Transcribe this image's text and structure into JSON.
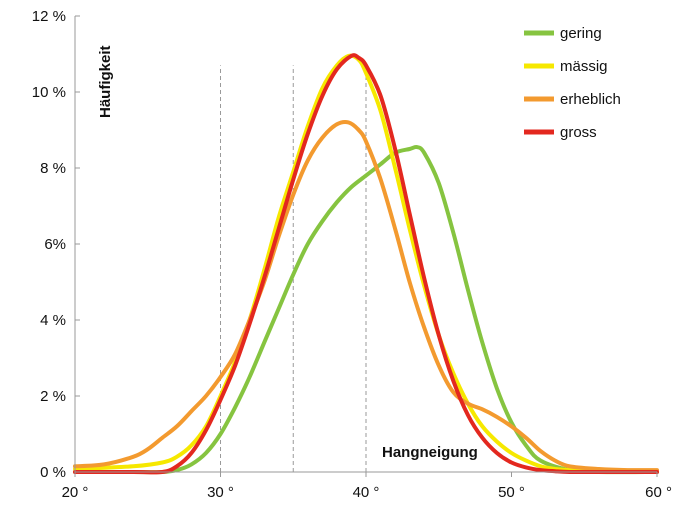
{
  "chart_data": {
    "type": "line",
    "xlabel": "Hangneigung",
    "ylabel": "Häufigkeit",
    "xlim": [
      20,
      60
    ],
    "ylim": [
      0,
      12
    ],
    "x_ticks": [
      {
        "value": 20,
        "label": "20 °"
      },
      {
        "value": 30,
        "label": "30 °"
      },
      {
        "value": 40,
        "label": "40 °"
      },
      {
        "value": 50,
        "label": "50 °"
      },
      {
        "value": 60,
        "label": "60 °"
      }
    ],
    "y_ticks": [
      {
        "value": 0,
        "label": "0 %"
      },
      {
        "value": 2,
        "label": "2 %"
      },
      {
        "value": 4,
        "label": "4 %"
      },
      {
        "value": 6,
        "label": "6%"
      },
      {
        "value": 8,
        "label": "8 %"
      },
      {
        "value": 10,
        "label": "10 %"
      },
      {
        "value": 12,
        "label": "12 %"
      }
    ],
    "reference_lines_x": [
      30,
      35,
      40
    ],
    "legend_position": "top-right",
    "grid": false,
    "series": [
      {
        "name": "gering",
        "color": "#86c440",
        "x": [
          20,
          24,
          26,
          27,
          28,
          29,
          30,
          31,
          32,
          33,
          34,
          35,
          36,
          37,
          38,
          39,
          40,
          41,
          42,
          43,
          43.5,
          44,
          45,
          46,
          47,
          48,
          49,
          50,
          51,
          52,
          54,
          56,
          60
        ],
        "y": [
          0,
          0,
          0,
          0.05,
          0.2,
          0.5,
          1.0,
          1.7,
          2.5,
          3.4,
          4.3,
          5.2,
          6.0,
          6.6,
          7.1,
          7.5,
          7.8,
          8.1,
          8.4,
          8.5,
          8.55,
          8.4,
          7.6,
          6.3,
          4.8,
          3.4,
          2.2,
          1.3,
          0.7,
          0.3,
          0.05,
          0,
          0
        ]
      },
      {
        "name": "mässig",
        "color": "#f6e800",
        "x": [
          20,
          24,
          26,
          27,
          28,
          29,
          30,
          31,
          32,
          33,
          34,
          35,
          36,
          37,
          38,
          38.8,
          39.5,
          40,
          41,
          42,
          43,
          44,
          45,
          46,
          47,
          48,
          49,
          50,
          51,
          52,
          53,
          54,
          56,
          60
        ],
        "y": [
          0.08,
          0.15,
          0.25,
          0.4,
          0.7,
          1.2,
          2.0,
          2.9,
          4.0,
          5.3,
          6.7,
          7.9,
          9.1,
          10.1,
          10.7,
          10.95,
          10.85,
          10.5,
          9.5,
          8.0,
          6.4,
          4.9,
          3.6,
          2.6,
          1.8,
          1.2,
          0.8,
          0.5,
          0.3,
          0.15,
          0.08,
          0.05,
          0.03,
          0.03
        ]
      },
      {
        "name": "erheblich",
        "color": "#f39a2f",
        "x": [
          20,
          22,
          24,
          25,
          26,
          27,
          28,
          29,
          30,
          31,
          32,
          33,
          34,
          35,
          36,
          37,
          38,
          38.8,
          39.5,
          40,
          41,
          42,
          43,
          44,
          45,
          46,
          47,
          48,
          49,
          50,
          51,
          52,
          53,
          54,
          56,
          58,
          60
        ],
        "y": [
          0.15,
          0.2,
          0.4,
          0.6,
          0.9,
          1.2,
          1.6,
          2.0,
          2.5,
          3.1,
          4.0,
          5.0,
          6.2,
          7.3,
          8.2,
          8.8,
          9.15,
          9.2,
          9.0,
          8.7,
          7.7,
          6.4,
          5.0,
          3.8,
          2.8,
          2.1,
          1.8,
          1.65,
          1.45,
          1.2,
          0.9,
          0.55,
          0.3,
          0.15,
          0.08,
          0.05,
          0.05
        ]
      },
      {
        "name": "gross",
        "color": "#e3281f",
        "x": [
          20,
          24,
          26,
          27,
          28,
          29,
          30,
          31,
          32,
          33,
          34,
          35,
          36,
          37,
          38,
          39,
          39.5,
          40,
          41,
          42,
          43,
          44,
          45,
          46,
          47,
          48,
          49,
          50,
          51,
          52,
          53,
          54,
          56,
          60
        ],
        "y": [
          0,
          0,
          0,
          0.15,
          0.5,
          1.1,
          1.9,
          2.8,
          3.9,
          5.1,
          6.4,
          7.7,
          8.9,
          9.9,
          10.6,
          10.95,
          10.9,
          10.7,
          9.9,
          8.5,
          6.8,
          5.1,
          3.6,
          2.4,
          1.5,
          0.9,
          0.5,
          0.25,
          0.12,
          0.05,
          0.02,
          0,
          0,
          0
        ]
      }
    ]
  }
}
